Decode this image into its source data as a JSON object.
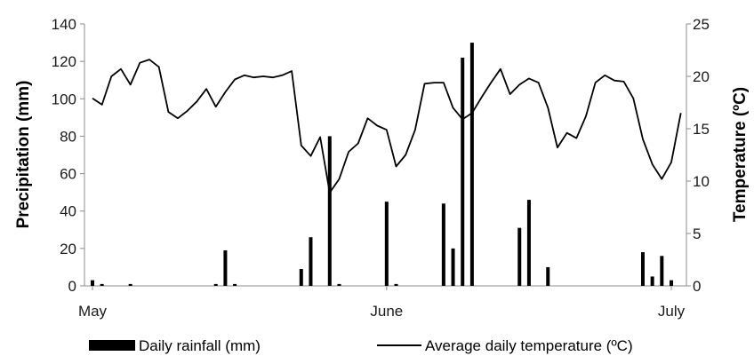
{
  "chart_data": {
    "type": "bar+line",
    "title": "",
    "x_axis": {
      "type": "date",
      "range": [
        "2000-05-01",
        "2000-07-01"
      ],
      "tick_labels": [
        "May",
        "June",
        "July"
      ],
      "tick_dates": [
        "2000-05-01",
        "2000-06-01",
        "2000-07-01"
      ]
    },
    "y_left": {
      "label": "Precipitation (mm)",
      "range": [
        0,
        140
      ],
      "ticks": [
        0,
        20,
        40,
        60,
        80,
        100,
        120,
        140
      ]
    },
    "y_right": {
      "label": "Temperature (ºC)",
      "range": [
        0,
        25
      ],
      "ticks": [
        0,
        5,
        10,
        15,
        20,
        25
      ]
    },
    "grid": false,
    "legend_position": "bottom",
    "series": [
      {
        "name": "Daily rainfall (mm)",
        "type": "bar",
        "axis": "left",
        "color": "#000000",
        "x": [
          "2000-05-01",
          "2000-05-02",
          "2000-05-05",
          "2000-05-14",
          "2000-05-15",
          "2000-05-16",
          "2000-05-23",
          "2000-05-24",
          "2000-05-26",
          "2000-05-27",
          "2000-06-01",
          "2000-06-02",
          "2000-06-07",
          "2000-06-08",
          "2000-06-09",
          "2000-06-10",
          "2000-06-15",
          "2000-06-16",
          "2000-06-18",
          "2000-06-28",
          "2000-06-29",
          "2000-06-30",
          "2000-07-01"
        ],
        "values": [
          3,
          1,
          1,
          1,
          19,
          1,
          9,
          26,
          80,
          1,
          45,
          1,
          44,
          20,
          122,
          130,
          31,
          46,
          10,
          18,
          5,
          16,
          3
        ]
      },
      {
        "name": "Average daily temperature (ºC)",
        "type": "line",
        "axis": "right",
        "color": "#000000",
        "x": [
          "2000-05-01",
          "2000-05-02",
          "2000-05-03",
          "2000-05-04",
          "2000-05-05",
          "2000-05-06",
          "2000-05-07",
          "2000-05-08",
          "2000-05-09",
          "2000-05-10",
          "2000-05-11",
          "2000-05-12",
          "2000-05-13",
          "2000-05-14",
          "2000-05-15",
          "2000-05-16",
          "2000-05-17",
          "2000-05-18",
          "2000-05-19",
          "2000-05-20",
          "2000-05-21",
          "2000-05-22",
          "2000-05-23",
          "2000-05-24",
          "2000-05-25",
          "2000-05-26",
          "2000-05-27",
          "2000-05-28",
          "2000-05-29",
          "2000-05-30",
          "2000-05-31",
          "2000-06-01",
          "2000-06-02",
          "2000-06-03",
          "2000-06-04",
          "2000-06-05",
          "2000-06-06",
          "2000-06-07",
          "2000-06-08",
          "2000-06-09",
          "2000-06-10",
          "2000-06-11",
          "2000-06-12",
          "2000-06-13",
          "2000-06-14",
          "2000-06-15",
          "2000-06-16",
          "2000-06-17",
          "2000-06-18",
          "2000-06-19",
          "2000-06-20",
          "2000-06-21",
          "2000-06-22",
          "2000-06-23",
          "2000-06-24",
          "2000-06-25",
          "2000-06-26",
          "2000-06-27",
          "2000-06-28",
          "2000-06-29",
          "2000-06-30",
          "2000-07-01",
          "2000-07-02",
          "2000-07-03",
          "2000-07-04",
          "2000-07-05"
        ],
        "values": [
          17.9,
          17.3,
          20.0,
          20.7,
          19.2,
          21.3,
          21.6,
          20.9,
          16.6,
          16.0,
          16.7,
          17.6,
          18.8,
          17.1,
          18.5,
          19.7,
          20.1,
          19.9,
          20.0,
          19.9,
          20.1,
          20.5,
          13.4,
          12.4,
          14.2,
          8.9,
          10.2,
          12.8,
          13.6,
          16.0,
          15.3,
          14.9,
          11.4,
          12.5,
          14.9,
          19.3,
          19.4,
          19.4,
          17.0,
          15.9,
          16.5,
          18.0,
          19.4,
          20.7,
          18.3,
          19.2,
          19.8,
          19.4,
          17.0,
          13.2,
          14.6,
          14.1,
          16.2,
          19.4,
          20.1,
          19.6,
          19.5,
          17.9,
          14.0,
          11.6,
          10.2,
          11.8,
          16.5,
          null,
          null,
          null
        ]
      }
    ]
  }
}
